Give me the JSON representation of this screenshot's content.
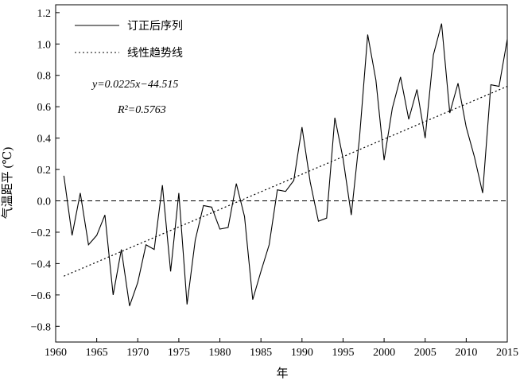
{
  "chart_data": {
    "type": "line",
    "xlabel": "年",
    "ylabel": "气温距平 (℃)",
    "xlim": [
      1960,
      2015
    ],
    "ylim": [
      -0.9,
      1.25
    ],
    "xticks": [
      1960,
      1965,
      1970,
      1975,
      1980,
      1985,
      1990,
      1995,
      2000,
      2005,
      2010,
      2015
    ],
    "yticks": [
      -0.8,
      -0.6,
      -0.4,
      -0.2,
      0.0,
      0.2,
      0.4,
      0.6,
      0.8,
      1.0,
      1.2
    ],
    "xtick_labels": [
      "1960",
      "1965",
      "1970",
      "1975",
      "1980",
      "1985",
      "1990",
      "1995",
      "2000",
      "2005",
      "2010",
      "2015"
    ],
    "ytick_labels": [
      "−0.8",
      "−0.6",
      "−0.4",
      "−0.2",
      "0.0",
      "0.2",
      "0.4",
      "0.6",
      "0.8",
      "1.0",
      "1.2"
    ],
    "grid": false,
    "legend_position": "top-left",
    "reference_line": {
      "y": 0.0,
      "style": "dashed"
    },
    "series": [
      {
        "name": "订正后序列",
        "style": "solid",
        "x": [
          1961,
          1962,
          1963,
          1964,
          1965,
          1966,
          1967,
          1968,
          1969,
          1970,
          1971,
          1972,
          1973,
          1974,
          1975,
          1976,
          1977,
          1978,
          1979,
          1980,
          1981,
          1982,
          1983,
          1984,
          1985,
          1986,
          1987,
          1988,
          1989,
          1990,
          1991,
          1992,
          1993,
          1994,
          1995,
          1996,
          1997,
          1998,
          1999,
          2000,
          2001,
          2002,
          2003,
          2004,
          2005,
          2006,
          2007,
          2008,
          2009,
          2010,
          2011,
          2012,
          2013,
          2014,
          2015
        ],
        "values": [
          0.16,
          -0.22,
          0.05,
          -0.28,
          -0.22,
          -0.09,
          -0.6,
          -0.31,
          -0.67,
          -0.52,
          -0.28,
          -0.31,
          0.1,
          -0.45,
          0.05,
          -0.66,
          -0.25,
          -0.03,
          -0.04,
          -0.18,
          -0.17,
          0.11,
          -0.1,
          -0.63,
          -0.45,
          -0.28,
          0.07,
          0.06,
          0.13,
          0.47,
          0.12,
          -0.13,
          -0.11,
          0.53,
          0.27,
          -0.09,
          0.4,
          1.06,
          0.77,
          0.26,
          0.59,
          0.79,
          0.52,
          0.71,
          0.4,
          0.93,
          1.13,
          0.56,
          0.75,
          0.47,
          0.28,
          0.05,
          0.74,
          0.73,
          1.03
        ]
      },
      {
        "name": "线性趋势线",
        "style": "dotted",
        "x": [
          1961,
          2015
        ],
        "values": [
          -0.48,
          0.73
        ]
      }
    ],
    "annotations": [
      {
        "text": "y=0.0225x−44.515"
      },
      {
        "text": "R²=0.5763"
      }
    ]
  }
}
